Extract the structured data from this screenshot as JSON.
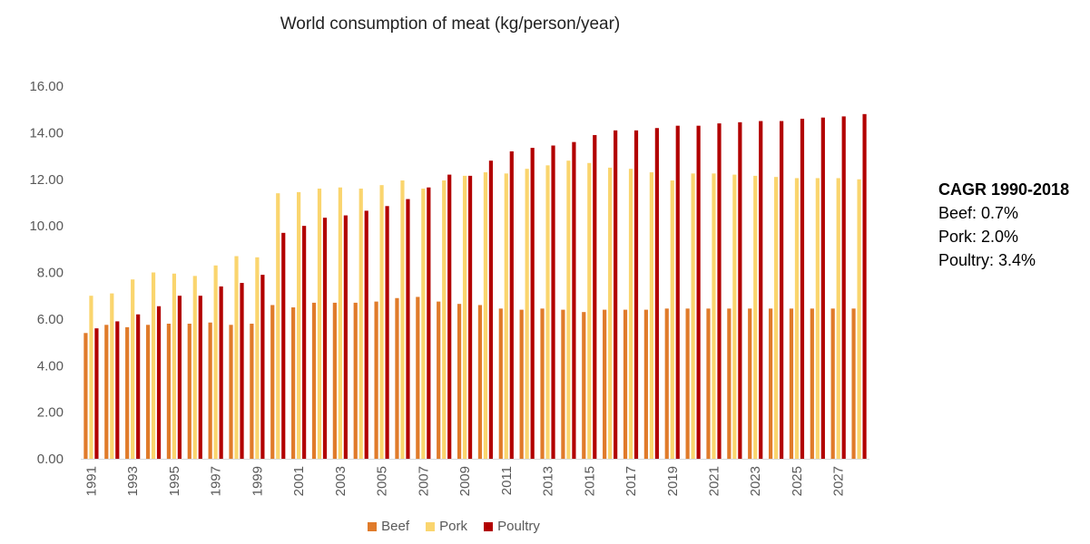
{
  "chart_data": {
    "type": "bar",
    "title": "World consumption of meat (kg/person/year)",
    "ylim": [
      0,
      16
    ],
    "yticks": [
      "0.00",
      "2.00",
      "4.00",
      "6.00",
      "8.00",
      "10.00",
      "12.00",
      "14.00",
      "16.00"
    ],
    "categories": [
      1991,
      1992,
      1993,
      1994,
      1995,
      1996,
      1997,
      1998,
      1999,
      2000,
      2001,
      2002,
      2003,
      2004,
      2005,
      2006,
      2007,
      2008,
      2009,
      2010,
      2011,
      2012,
      2013,
      2014,
      2015,
      2016,
      2017,
      2018,
      2019,
      2020,
      2021,
      2022,
      2023,
      2024,
      2025,
      2026,
      2027,
      2028
    ],
    "xtick_labels": [
      "1991",
      "1993",
      "1995",
      "1997",
      "1999",
      "2001",
      "2003",
      "2005",
      "2007",
      "2009",
      "2011",
      "2013",
      "2015",
      "2017",
      "2019",
      "2021",
      "2023",
      "2025",
      "2027"
    ],
    "legend_position": "bottom",
    "grid": false,
    "series": [
      {
        "name": "Beef",
        "color": "#E07B2A",
        "values": [
          5.4,
          5.75,
          5.65,
          5.75,
          5.8,
          5.8,
          5.85,
          5.75,
          5.8,
          6.6,
          6.5,
          6.7,
          6.7,
          6.7,
          6.75,
          6.9,
          6.95,
          6.75,
          6.65,
          6.6,
          6.45,
          6.4,
          6.45,
          6.4,
          6.3,
          6.4,
          6.4,
          6.4,
          6.45,
          6.45,
          6.45,
          6.45,
          6.45,
          6.45,
          6.45,
          6.45,
          6.45,
          6.45
        ]
      },
      {
        "name": "Pork",
        "color": "#FAD56E",
        "values": [
          7.0,
          7.1,
          7.7,
          8.0,
          7.95,
          7.85,
          8.3,
          8.7,
          8.65,
          11.4,
          11.45,
          11.6,
          11.65,
          11.6,
          11.75,
          11.95,
          11.6,
          11.95,
          12.15,
          12.3,
          12.25,
          12.45,
          12.6,
          12.8,
          12.7,
          12.5,
          12.45,
          12.3,
          11.95,
          12.25,
          12.25,
          12.2,
          12.15,
          12.1,
          12.05,
          12.05,
          12.05,
          12.0
        ]
      },
      {
        "name": "Poultry",
        "color": "#B20000",
        "values": [
          5.6,
          5.9,
          6.2,
          6.55,
          7.0,
          7.0,
          7.4,
          7.55,
          7.9,
          9.7,
          10.0,
          10.35,
          10.45,
          10.65,
          10.85,
          11.15,
          11.65,
          12.2,
          12.15,
          12.8,
          13.2,
          13.35,
          13.45,
          13.6,
          13.9,
          14.1,
          14.1,
          14.2,
          14.3,
          14.3,
          14.4,
          14.45,
          14.5,
          14.5,
          14.6,
          14.65,
          14.7,
          14.8
        ]
      }
    ]
  },
  "annotation": {
    "heading": "CAGR 1990-2018",
    "lines": [
      "Beef: 0.7%",
      "Pork: 2.0%",
      "Poultry: 3.4%"
    ]
  }
}
